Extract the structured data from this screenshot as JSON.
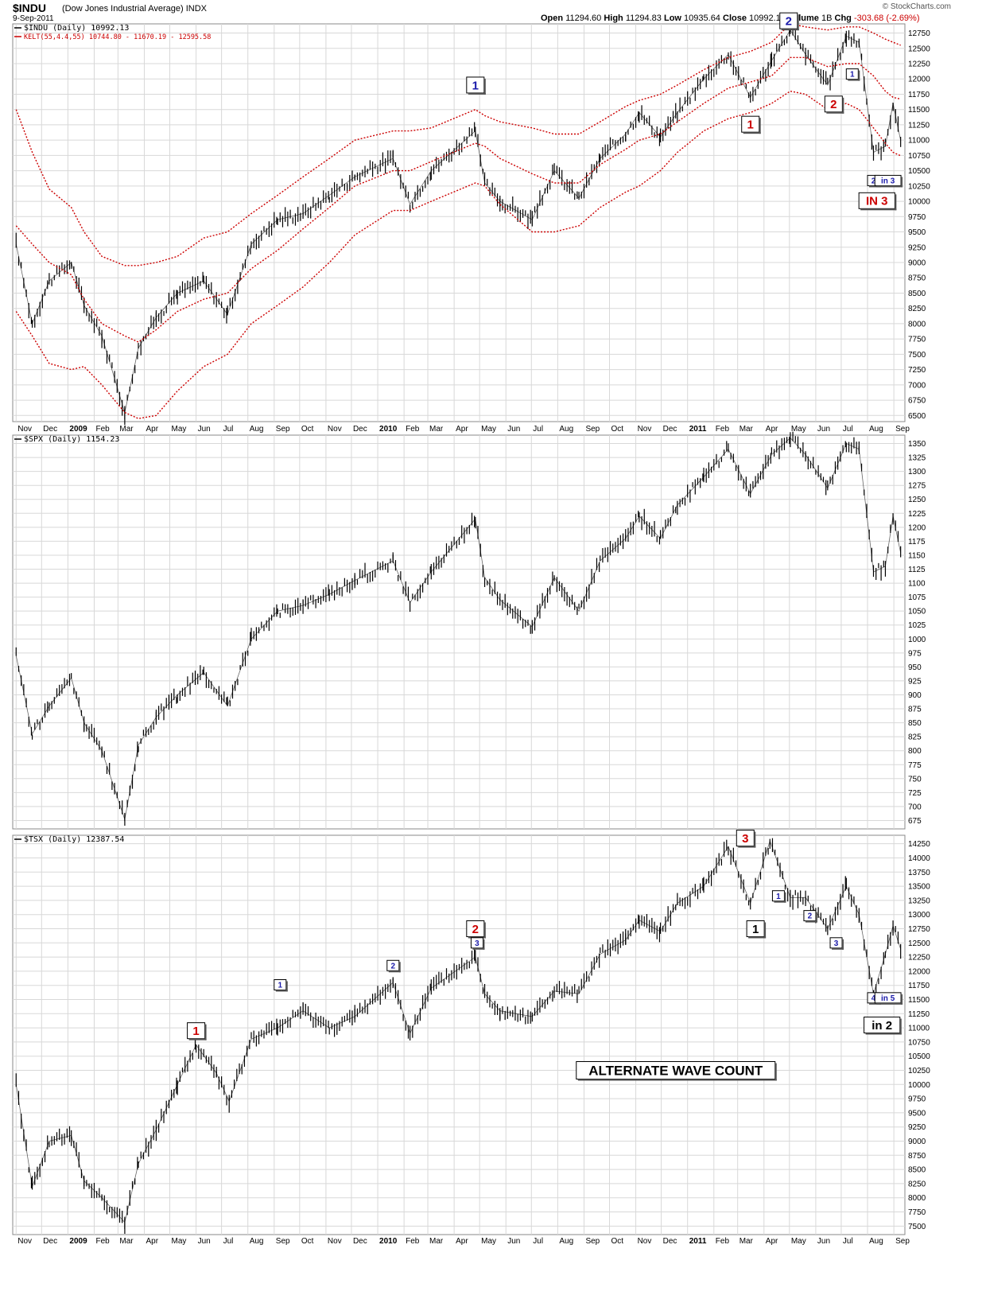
{
  "header": {
    "ticker": "$INDU",
    "description": "(Dow Jones Industrial Average)",
    "exchange": "INDX",
    "date": "9-Sep-2011",
    "site": "© StockCharts.com",
    "open_label": "Open",
    "open": "11294.60",
    "high_label": "High",
    "high": "11294.83",
    "low_label": "Low",
    "low": "10935.64",
    "close_label": "Close",
    "close": "10992.13",
    "volume_label": "Volume",
    "volume": "1B",
    "chg_label": "Chg",
    "chg": "-303.68 (-2.69%)"
  },
  "colors": {
    "bars": "#000000",
    "kelt": "#cc0000",
    "grid": "#d8d8d8",
    "blue_label": "#1a1aaa",
    "red_label": "#cc0000",
    "black_label": "#000000"
  },
  "x_axis_labels": [
    "Nov",
    "Dec",
    "2009",
    "Feb",
    "Mar",
    "Apr",
    "May",
    "Jun",
    "Jul",
    "Aug",
    "Sep",
    "Oct",
    "Nov",
    "Dec",
    "2010",
    "Feb",
    "Mar",
    "Apr",
    "May",
    "Jun",
    "Jul",
    "Aug",
    "Sep",
    "Oct",
    "Nov",
    "Dec",
    "2011",
    "Feb",
    "Mar",
    "Apr",
    "May",
    "Jun",
    "Jul",
    "Aug",
    "Sep"
  ],
  "chart_data": [
    {
      "type": "line",
      "legend": [
        "$INDU (Daily) 10992.13",
        "KELT(55,4.4,55) 10744.80 - 11670.19 - 12595.58"
      ],
      "y_ticks": [
        6500,
        6750,
        7000,
        7250,
        7500,
        7750,
        8000,
        8250,
        8500,
        8750,
        9000,
        9250,
        9500,
        9750,
        10000,
        10250,
        10500,
        10750,
        11000,
        11250,
        11500,
        11750,
        12000,
        12250,
        12500,
        12750
      ],
      "ylim": [
        6400,
        12900
      ],
      "x": [
        "2008-11-01",
        "2008-11-20",
        "2008-12-10",
        "2009-01-05",
        "2009-01-20",
        "2009-02-10",
        "2009-03-09",
        "2009-03-25",
        "2009-04-15",
        "2009-05-10",
        "2009-06-10",
        "2009-07-08",
        "2009-08-05",
        "2009-09-05",
        "2009-10-05",
        "2009-11-05",
        "2009-12-05",
        "2010-01-19",
        "2010-02-08",
        "2010-03-05",
        "2010-04-26",
        "2010-05-07",
        "2010-05-25",
        "2010-07-02",
        "2010-07-28",
        "2010-08-26",
        "2010-09-20",
        "2010-10-20",
        "2010-11-05",
        "2010-11-30",
        "2010-12-20",
        "2011-01-20",
        "2011-02-18",
        "2011-03-16",
        "2011-04-10",
        "2011-05-02",
        "2011-05-20",
        "2011-06-15",
        "2011-07-07",
        "2011-07-22",
        "2011-08-08",
        "2011-08-22",
        "2011-08-31",
        "2011-09-09"
      ],
      "series": [
        {
          "name": "$INDU",
          "values": [
            9300,
            8000,
            8700,
            9000,
            8300,
            7800,
            6547,
            7600,
            8100,
            8500,
            8700,
            8150,
            9300,
            9700,
            9800,
            10100,
            10400,
            10700,
            9950,
            10500,
            11150,
            10300,
            10000,
            9700,
            10500,
            10050,
            10700,
            11100,
            11450,
            11050,
            11450,
            12000,
            12400,
            11700,
            12300,
            12800,
            12400,
            11900,
            12700,
            12600,
            10800,
            10900,
            11600,
            10992
          ]
        },
        {
          "name": "KELT upper",
          "values": [
            11500,
            10800,
            10200,
            9900,
            9500,
            9100,
            8950,
            8950,
            9000,
            9100,
            9400,
            9500,
            9800,
            10100,
            10400,
            10700,
            11000,
            11150,
            11150,
            11200,
            11500,
            11400,
            11300,
            11200,
            11100,
            11100,
            11300,
            11550,
            11650,
            11750,
            11900,
            12150,
            12350,
            12450,
            12600,
            12900,
            12850,
            12800,
            12850,
            12850,
            12750,
            12650,
            12600,
            12550
          ]
        },
        {
          "name": "KELT middle",
          "values": [
            9600,
            9300,
            9000,
            8800,
            8400,
            8000,
            7800,
            7700,
            7900,
            8200,
            8400,
            8500,
            8900,
            9200,
            9550,
            9900,
            10250,
            10500,
            10500,
            10650,
            10950,
            10900,
            10700,
            10450,
            10300,
            10300,
            10600,
            10850,
            11000,
            11100,
            11300,
            11600,
            11850,
            11950,
            12050,
            12350,
            12350,
            12200,
            12250,
            12250,
            12050,
            11800,
            11700,
            11670
          ]
        },
        {
          "name": "KELT lower",
          "values": [
            8200,
            7800,
            7350,
            7250,
            7300,
            7000,
            6550,
            6450,
            6500,
            6900,
            7300,
            7500,
            8000,
            8300,
            8600,
            9000,
            9450,
            9850,
            9850,
            10000,
            10300,
            10250,
            9950,
            9500,
            9500,
            9600,
            9900,
            10150,
            10250,
            10500,
            10800,
            11150,
            11350,
            11450,
            11600,
            11800,
            11750,
            11500,
            11600,
            11500,
            11200,
            10950,
            10800,
            10745
          ]
        }
      ],
      "annotations": [
        {
          "text": "1",
          "color": "blue",
          "x": "2010-04-26",
          "y": 11900
        },
        {
          "text": "1",
          "color": "red",
          "x": "2011-03-16",
          "y": 11260
        },
        {
          "text": "2",
          "color": "blue",
          "x": "2011-04-30",
          "y": 12950
        },
        {
          "text": "2",
          "color": "red",
          "x": "2011-06-22",
          "y": 11590
        },
        {
          "text": "1",
          "color": "blue",
          "x": "2011-07-14",
          "y": 12080
        },
        {
          "text": "2",
          "color": "blue",
          "x": "2011-08-08",
          "y": 10340
        },
        {
          "text": "in 3",
          "color": "blue",
          "x": "2011-08-25",
          "y": 10340
        },
        {
          "text": "IN 3",
          "color": "red",
          "x": "2011-08-12",
          "y": 10010
        }
      ]
    },
    {
      "type": "line",
      "legend": [
        "$SPX (Daily) 1154.23"
      ],
      "y_ticks": [
        675,
        700,
        725,
        750,
        775,
        800,
        825,
        850,
        875,
        900,
        925,
        950,
        975,
        1000,
        1025,
        1050,
        1075,
        1100,
        1125,
        1150,
        1175,
        1200,
        1225,
        1250,
        1275,
        1300,
        1325,
        1350
      ],
      "ylim": [
        660,
        1365
      ],
      "x": [
        "2008-11-01",
        "2008-11-20",
        "2008-12-10",
        "2009-01-05",
        "2009-01-20",
        "2009-02-10",
        "2009-03-09",
        "2009-03-25",
        "2009-04-15",
        "2009-05-10",
        "2009-06-10",
        "2009-07-08",
        "2009-08-05",
        "2009-09-05",
        "2009-10-05",
        "2009-11-05",
        "2009-12-05",
        "2010-01-19",
        "2010-02-08",
        "2010-03-05",
        "2010-04-26",
        "2010-05-07",
        "2010-05-25",
        "2010-07-02",
        "2010-07-28",
        "2010-08-26",
        "2010-09-20",
        "2010-10-20",
        "2010-11-05",
        "2010-11-30",
        "2010-12-20",
        "2011-01-20",
        "2011-02-18",
        "2011-03-16",
        "2011-04-10",
        "2011-05-02",
        "2011-05-20",
        "2011-06-15",
        "2011-07-07",
        "2011-07-22",
        "2011-08-08",
        "2011-08-22",
        "2011-08-31",
        "2011-09-09"
      ],
      "series": [
        {
          "name": "$SPX",
          "values": [
            970,
            830,
            880,
            930,
            850,
            800,
            677,
            810,
            860,
            900,
            940,
            880,
            1000,
            1050,
            1060,
            1080,
            1105,
            1140,
            1065,
            1120,
            1215,
            1110,
            1070,
            1022,
            1110,
            1050,
            1140,
            1180,
            1220,
            1180,
            1240,
            1290,
            1340,
            1260,
            1330,
            1360,
            1330,
            1270,
            1350,
            1340,
            1120,
            1130,
            1220,
            1154
          ]
        }
      ],
      "annotations": []
    },
    {
      "type": "line",
      "legend": [
        "$TSX (Daily) 12387.54"
      ],
      "y_ticks": [
        7500,
        7750,
        8000,
        8250,
        8500,
        8750,
        9000,
        9250,
        9500,
        9750,
        10000,
        10250,
        10500,
        10750,
        11000,
        11250,
        11500,
        11750,
        12000,
        12250,
        12500,
        12750,
        13000,
        13250,
        13500,
        13750,
        14000,
        14250
      ],
      "ylim": [
        7350,
        14400
      ],
      "x": [
        "2008-11-01",
        "2008-11-20",
        "2008-12-10",
        "2009-01-05",
        "2009-01-20",
        "2009-02-10",
        "2009-03-09",
        "2009-03-25",
        "2009-04-15",
        "2009-05-10",
        "2009-06-01",
        "2009-06-25",
        "2009-07-10",
        "2009-08-05",
        "2009-09-05",
        "2009-10-05",
        "2009-11-05",
        "2009-12-05",
        "2010-01-19",
        "2010-02-08",
        "2010-03-05",
        "2010-04-26",
        "2010-05-07",
        "2010-05-25",
        "2010-07-02",
        "2010-07-28",
        "2010-08-26",
        "2010-09-20",
        "2010-10-20",
        "2010-11-05",
        "2010-11-30",
        "2010-12-20",
        "2011-01-20",
        "2011-02-18",
        "2011-03-16",
        "2011-04-08",
        "2011-05-02",
        "2011-05-20",
        "2011-06-15",
        "2011-07-07",
        "2011-07-22",
        "2011-08-08",
        "2011-08-22",
        "2011-08-31",
        "2011-09-09"
      ],
      "series": [
        {
          "name": "$TSX",
          "values": [
            10000,
            8200,
            9000,
            9100,
            8300,
            8000,
            7566,
            8600,
            9200,
            10000,
            10700,
            10200,
            9700,
            10800,
            11000,
            11300,
            11000,
            11200,
            11800,
            10900,
            11700,
            12250,
            11600,
            11300,
            11200,
            11650,
            11600,
            12300,
            12550,
            12900,
            12700,
            13200,
            13500,
            14200,
            13200,
            14300,
            13300,
            13300,
            12750,
            13500,
            13000,
            11600,
            12300,
            12800,
            12388
          ]
        }
      ],
      "annotations": [
        {
          "text": "1",
          "color": "red",
          "x": "2009-06-01",
          "y": 10950
        },
        {
          "text": "1",
          "color": "blue",
          "x": "2009-09-08",
          "y": 11760
        },
        {
          "text": "2",
          "color": "blue",
          "x": "2010-01-19",
          "y": 12100
        },
        {
          "text": "2",
          "color": "red",
          "x": "2010-04-26",
          "y": 12750
        },
        {
          "text": "3",
          "color": "blue",
          "x": "2010-04-28",
          "y": 12500
        },
        {
          "text": "3",
          "color": "red",
          "x": "2011-03-10",
          "y": 14350
        },
        {
          "text": "1",
          "color": "black",
          "x": "2011-03-22",
          "y": 12750
        },
        {
          "text": "1",
          "color": "blue",
          "x": "2011-04-18",
          "y": 13330
        },
        {
          "text": "2",
          "color": "blue",
          "x": "2011-05-25",
          "y": 12980
        },
        {
          "text": "3",
          "color": "blue",
          "x": "2011-06-25",
          "y": 12500
        },
        {
          "text": "4",
          "color": "blue",
          "x": "2011-08-08",
          "y": 11530
        },
        {
          "text": "in 5",
          "color": "blue",
          "x": "2011-08-25",
          "y": 11530
        },
        {
          "text": "in 2",
          "color": "black",
          "x": "2011-08-18",
          "y": 11050
        },
        {
          "text": "ALTERNATE WAVE COUNT",
          "color": "black",
          "x": "2010-12-18",
          "y": 10250
        }
      ]
    }
  ]
}
